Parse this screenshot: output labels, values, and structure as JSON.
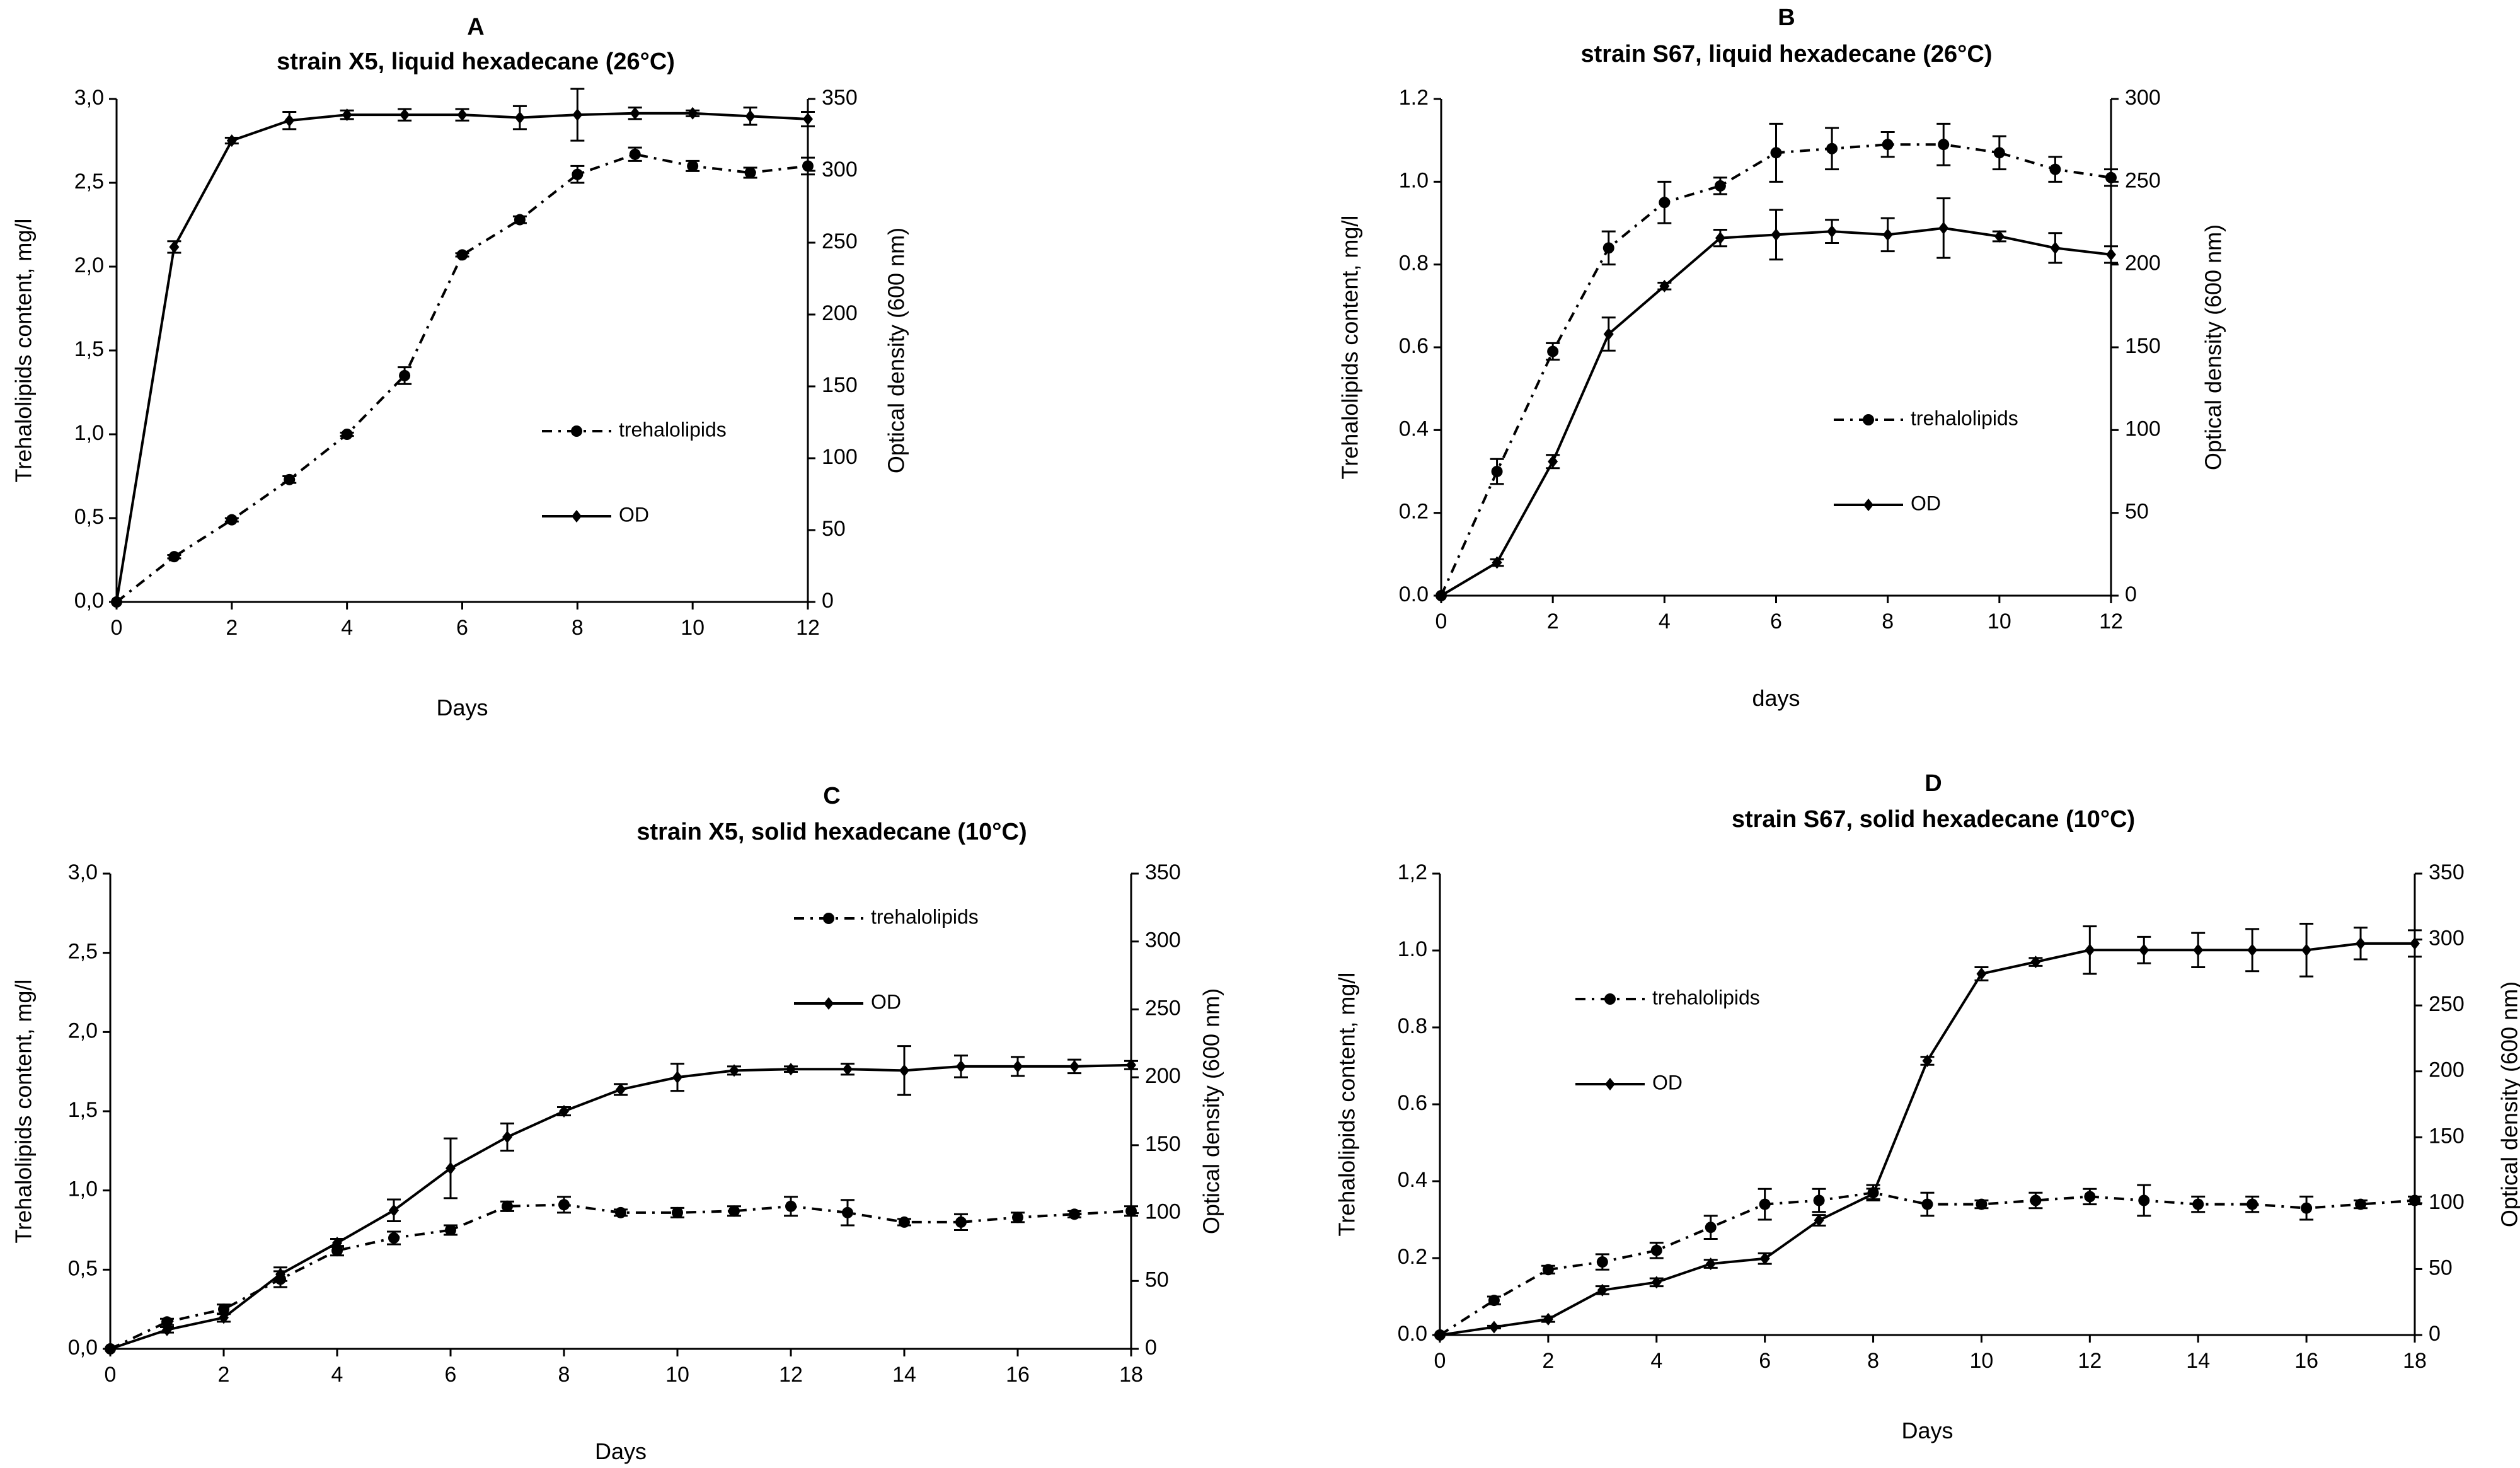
{
  "figure": {
    "panels": [
      {
        "letter": "A",
        "title": "strain X5, liquid hexadecane (26°C)",
        "xlabel": "Days",
        "ylabel_left": "Trehalolipids content, mg/l",
        "ylabel_right": "Optical density (600 nm)",
        "legend_position": "center-right"
      },
      {
        "letter": "B",
        "title": "strain S67, liquid hexadecane (26°C)",
        "xlabel": "days",
        "ylabel_left": "Trehalolipids content, mg/l",
        "ylabel_right": "Optical density (600 nm)",
        "legend_position": "center-right"
      },
      {
        "letter": "C",
        "title": "strain X5, solid hexadecane (10°C)",
        "xlabel": "Days",
        "ylabel_left": "Trehalolipids content, mg/l",
        "ylabel_right": "Optical density (600 nm)",
        "legend_position": "top-right"
      },
      {
        "letter": "D",
        "title": "strain S67, solid hexadecane (10°C)",
        "xlabel": "Days",
        "ylabel_left": "Trehalolipids content, mg/l",
        "ylabel_right": "Optical density (600 nm)",
        "legend_position": "top-left"
      }
    ]
  },
  "chart_data": [
    {
      "type": "line",
      "panel": "A",
      "title": "strain X5, liquid hexadecane (26°C)",
      "xlabel": "Days",
      "ylabel": "Trehalolipids content, mg/l",
      "y2label": "Optical density (600 nm)",
      "xlim": [
        0,
        12
      ],
      "ylim": [
        0,
        3
      ],
      "y2lim": [
        0,
        350
      ],
      "xticks": [
        "0",
        "2",
        "4",
        "6",
        "8",
        "10",
        "12"
      ],
      "yticks": [
        "0,0",
        "0,5",
        "1,0",
        "1,5",
        "2,0",
        "2,5",
        "3,0"
      ],
      "y2ticks": [
        "0",
        "50",
        "100",
        "150",
        "200",
        "250",
        "300",
        "350"
      ],
      "series": [
        {
          "name": "trehalolipids",
          "axis": "left",
          "style": "dashed",
          "marker": "circle",
          "x": [
            0,
            1,
            2,
            3,
            4,
            5,
            6,
            7,
            8,
            9,
            10,
            11,
            12
          ],
          "values": [
            0.0,
            0.27,
            0.49,
            0.73,
            1.0,
            1.35,
            2.07,
            2.28,
            2.55,
            2.67,
            2.6,
            2.56,
            2.6
          ],
          "errors": [
            0,
            0.01,
            0.01,
            0.02,
            0.01,
            0.05,
            0.01,
            0.02,
            0.05,
            0.04,
            0.03,
            0.03,
            0.05
          ]
        },
        {
          "name": "OD",
          "axis": "right",
          "style": "solid",
          "marker": "diamond",
          "x": [
            0,
            1,
            2,
            3,
            4,
            5,
            6,
            7,
            8,
            9,
            10,
            11,
            12
          ],
          "values": [
            0,
            247,
            321,
            335,
            339,
            339,
            339,
            337,
            339,
            340,
            340,
            338,
            336
          ],
          "errors": [
            0,
            4,
            2,
            6,
            3,
            4,
            4,
            8,
            18,
            4,
            2,
            6,
            5
          ]
        }
      ]
    },
    {
      "type": "line",
      "panel": "B",
      "title": "strain S67, liquid hexadecane (26°C)",
      "xlabel": "days",
      "ylabel": "Trehalolipids content, mg/l",
      "y2label": "Optical density (600 nm)",
      "xlim": [
        0,
        12
      ],
      "ylim": [
        0,
        1.2
      ],
      "y2lim": [
        0,
        300
      ],
      "xticks": [
        "0",
        "2",
        "4",
        "6",
        "8",
        "10",
        "12"
      ],
      "yticks": [
        "0.0",
        "0.2",
        "0.4",
        "0.6",
        "0.8",
        "1.0",
        "1.2"
      ],
      "y2ticks": [
        "0",
        "50",
        "100",
        "150",
        "200",
        "250",
        "300"
      ],
      "series": [
        {
          "name": "trehalolipids",
          "axis": "left",
          "style": "dashed",
          "marker": "circle",
          "x": [
            0,
            1,
            2,
            3,
            4,
            5,
            6,
            7,
            8,
            9,
            10,
            11,
            12
          ],
          "values": [
            0.0,
            0.3,
            0.59,
            0.84,
            0.95,
            0.99,
            1.07,
            1.08,
            1.09,
            1.09,
            1.07,
            1.03,
            1.01
          ],
          "errors": [
            0,
            0.03,
            0.02,
            0.04,
            0.05,
            0.02,
            0.07,
            0.05,
            0.03,
            0.05,
            0.04,
            0.03,
            0.02
          ]
        },
        {
          "name": "OD",
          "axis": "right",
          "style": "solid",
          "marker": "diamond",
          "x": [
            0,
            1,
            2,
            3,
            4,
            5,
            6,
            7,
            8,
            9,
            10,
            11,
            12
          ],
          "values": [
            0,
            20,
            81,
            158,
            187,
            216,
            218,
            220,
            218,
            222,
            217,
            210,
            206
          ],
          "errors": [
            0,
            2,
            4,
            10,
            2,
            5,
            15,
            7,
            10,
            18,
            3,
            9,
            5
          ]
        }
      ]
    },
    {
      "type": "line",
      "panel": "C",
      "title": "strain X5, solid hexadecane (10°C)",
      "xlabel": "Days",
      "ylabel": "Trehalolipids content, mg/l",
      "y2label": "Optical density (600 nm)",
      "xlim": [
        0,
        18
      ],
      "ylim": [
        0,
        3
      ],
      "y2lim": [
        0,
        350
      ],
      "xticks": [
        "0",
        "2",
        "4",
        "6",
        "8",
        "10",
        "12",
        "14",
        "16",
        "18"
      ],
      "yticks": [
        "0,0",
        "0,5",
        "1,0",
        "1,5",
        "2,0",
        "2,5",
        "3,0"
      ],
      "y2ticks": [
        "0",
        "50",
        "100",
        "150",
        "200",
        "250",
        "300",
        "350"
      ],
      "series": [
        {
          "name": "trehalolipids",
          "axis": "left",
          "style": "dashed",
          "marker": "circle",
          "x": [
            0,
            1,
            2,
            3,
            4,
            5,
            6,
            7,
            8,
            9,
            10,
            11,
            12,
            13,
            14,
            15,
            16,
            17,
            18
          ],
          "values": [
            0.0,
            0.17,
            0.25,
            0.44,
            0.62,
            0.7,
            0.75,
            0.9,
            0.91,
            0.86,
            0.86,
            0.87,
            0.9,
            0.86,
            0.8,
            0.8,
            0.83,
            0.85,
            0.87
          ],
          "errors": [
            0,
            0.02,
            0.03,
            0.05,
            0.03,
            0.04,
            0.03,
            0.03,
            0.05,
            0.02,
            0.03,
            0.03,
            0.06,
            0.08,
            0.02,
            0.05,
            0.03,
            0.02,
            0.03
          ]
        },
        {
          "name": "OD",
          "axis": "right",
          "style": "solid",
          "marker": "diamond",
          "x": [
            0,
            1,
            2,
            3,
            4,
            5,
            6,
            7,
            8,
            9,
            10,
            11,
            12,
            13,
            14,
            15,
            16,
            17,
            18
          ],
          "values": [
            0,
            14,
            23,
            55,
            78,
            102,
            133,
            156,
            175,
            191,
            200,
            205,
            206,
            206,
            205,
            208,
            208,
            208,
            209
          ],
          "errors": [
            0,
            2,
            3,
            5,
            3,
            8,
            22,
            10,
            3,
            4,
            10,
            3,
            2,
            4,
            18,
            8,
            7,
            5,
            3
          ]
        }
      ]
    },
    {
      "type": "line",
      "panel": "D",
      "title": "strain S67, solid hexadecane (10°C)",
      "xlabel": "Days",
      "ylabel": "Trehalolipids content, mg/l",
      "y2label": "Optical density (600 nm)",
      "xlim": [
        0,
        18
      ],
      "ylim": [
        0,
        1.2
      ],
      "y2lim": [
        0,
        350
      ],
      "xticks": [
        "0",
        "2",
        "4",
        "6",
        "8",
        "10",
        "12",
        "14",
        "16",
        "18"
      ],
      "yticks": [
        "0.0",
        "0.2",
        "0.4",
        "0.6",
        "0.8",
        "1.0",
        "1,2"
      ],
      "y2ticks": [
        "0",
        "50",
        "100",
        "150",
        "200",
        "250",
        "300",
        "350"
      ],
      "series": [
        {
          "name": "trehalolipids",
          "axis": "left",
          "style": "dashed",
          "marker": "circle",
          "x": [
            0,
            1,
            2,
            3,
            4,
            5,
            6,
            7,
            8,
            9,
            10,
            11,
            12,
            13,
            14,
            15,
            16,
            17,
            18
          ],
          "values": [
            0.0,
            0.09,
            0.17,
            0.19,
            0.22,
            0.28,
            0.34,
            0.35,
            0.37,
            0.34,
            0.34,
            0.35,
            0.36,
            0.35,
            0.34,
            0.34,
            0.33,
            0.34,
            0.35
          ],
          "errors": [
            0,
            0.01,
            0.01,
            0.02,
            0.02,
            0.03,
            0.04,
            0.03,
            0.02,
            0.03,
            0.01,
            0.02,
            0.02,
            0.04,
            0.02,
            0.02,
            0.03,
            0.01,
            0.01
          ]
        },
        {
          "name": "OD",
          "axis": "right",
          "style": "solid",
          "marker": "diamond",
          "x": [
            0,
            1,
            2,
            3,
            4,
            5,
            6,
            7,
            8,
            9,
            10,
            11,
            12,
            13,
            14,
            15,
            16,
            17,
            18
          ],
          "values": [
            0,
            6,
            12,
            34,
            40,
            54,
            58,
            87,
            107,
            208,
            274,
            283,
            292,
            292,
            292,
            292,
            292,
            297,
            297
          ],
          "errors": [
            0,
            1,
            2,
            3,
            3,
            3,
            4,
            4,
            4,
            3,
            5,
            3,
            18,
            10,
            13,
            16,
            20,
            12,
            10
          ]
        }
      ]
    }
  ]
}
